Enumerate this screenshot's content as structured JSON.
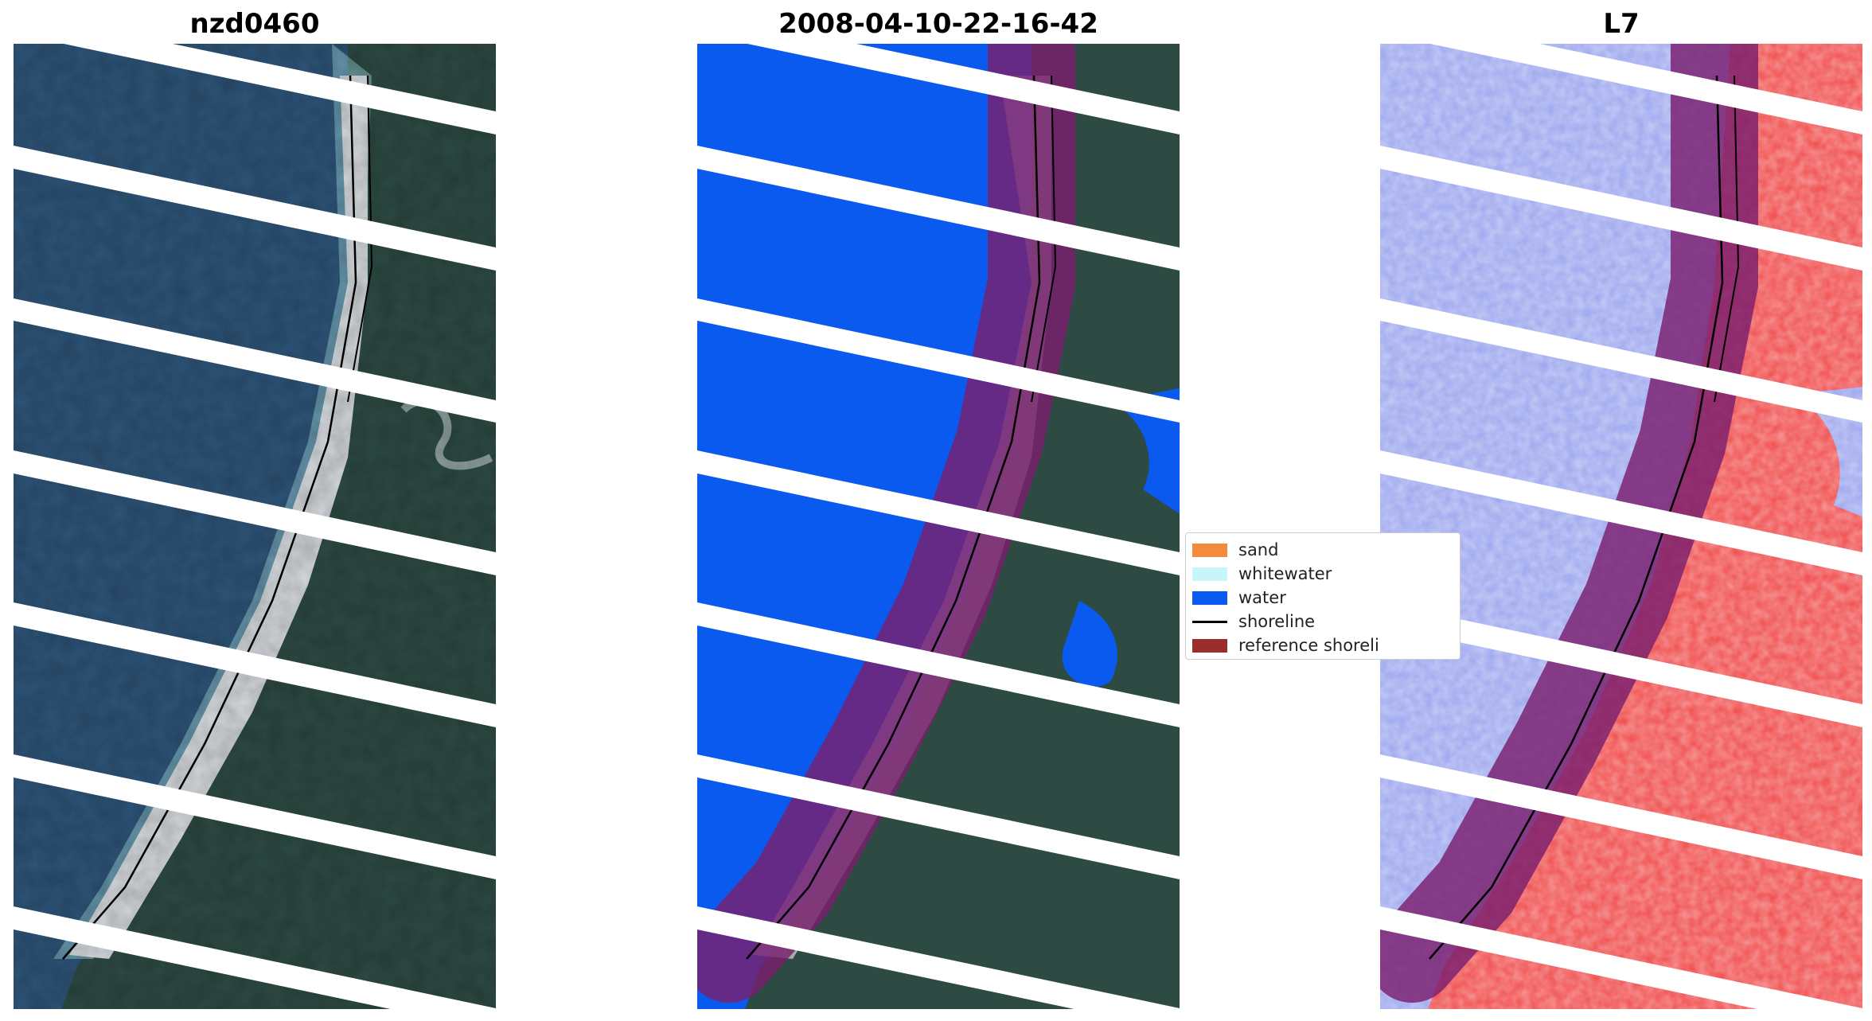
{
  "panels": [
    {
      "title": "nzd0460"
    },
    {
      "title": "2008-04-10-22-16-42"
    },
    {
      "title": "L7"
    }
  ],
  "legend": {
    "items": [
      {
        "label": "sand",
        "color": "#f28c3c",
        "kind": "patch"
      },
      {
        "label": "whitewater",
        "color": "#c9f5f7",
        "kind": "patch"
      },
      {
        "label": "water",
        "color": "#0a5af0",
        "kind": "patch"
      },
      {
        "label": "shoreline",
        "color": "#000000",
        "kind": "line"
      },
      {
        "label": "reference shoreli",
        "color": "#9b2d2d",
        "kind": "patch"
      }
    ]
  },
  "colors": {
    "ocean": "#2e5478",
    "land": "#2e4a44",
    "sand": "#d4d8dc",
    "surf": "#8fc4d0",
    "classified_water": "#0a5af0",
    "reference_buffer": "#7a1f6e",
    "index_water": "#b8bff0",
    "index_land": "#f04848",
    "gap": "#ffffff"
  }
}
